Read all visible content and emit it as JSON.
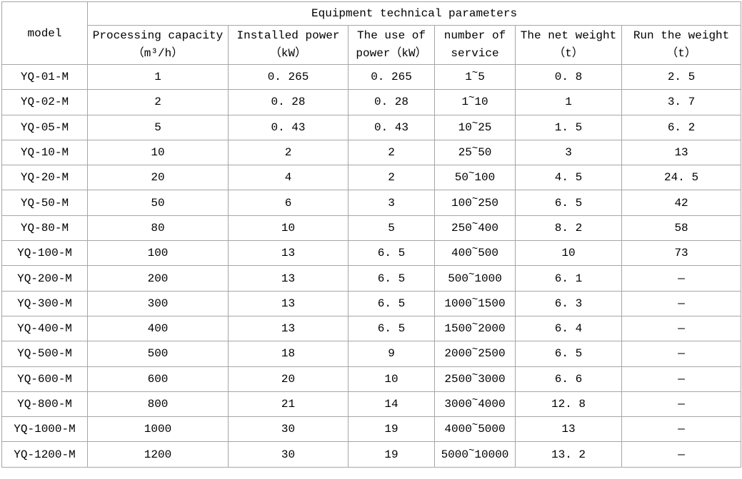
{
  "table": {
    "title": "Equipment technical parameters",
    "model_header": "model",
    "columns": [
      {
        "line1": "Processing capacity",
        "line2": "（m³/h）"
      },
      {
        "line1": "Installed power",
        "line2": "（kW）"
      },
      {
        "line1": "The use of",
        "line2": "power（kW）"
      },
      {
        "line1": "number of",
        "line2": "service"
      },
      {
        "line1": "The net weight",
        "line2": "（t）"
      },
      {
        "line1": "Run the weight",
        "line2": "（t）"
      }
    ],
    "rows": [
      {
        "model": "YQ-01-M",
        "values": [
          "1",
          "0.265",
          "0.265",
          "1~5",
          "0.8",
          "2.5"
        ]
      },
      {
        "model": "YQ-02-M",
        "values": [
          "2",
          "0.28",
          "0.28",
          "1~10",
          "1",
          "3.7"
        ]
      },
      {
        "model": "YQ-05-M",
        "values": [
          "5",
          "0.43",
          "0.43",
          "10~25",
          "1.5",
          "6.2"
        ]
      },
      {
        "model": "YQ-10-M",
        "values": [
          "10",
          "2",
          "2",
          "25~50",
          "3",
          "13"
        ]
      },
      {
        "model": "YQ-20-M",
        "values": [
          "20",
          "4",
          "2",
          "50~100",
          "4.5",
          "24.5"
        ]
      },
      {
        "model": "YQ-50-M",
        "values": [
          "50",
          "6",
          "3",
          "100~250",
          "6.5",
          "42"
        ]
      },
      {
        "model": "YQ-80-M",
        "values": [
          "80",
          "10",
          "5",
          "250~400",
          "8.2",
          "58"
        ]
      },
      {
        "model": "YQ-100-M",
        "values": [
          "100",
          "13",
          "6.5",
          "400~500",
          "10",
          "73"
        ]
      },
      {
        "model": "YQ-200-M",
        "values": [
          "200",
          "13",
          "6.5",
          "500~1000",
          "6.1",
          "—"
        ]
      },
      {
        "model": "YQ-300-M",
        "values": [
          "300",
          "13",
          "6.5",
          "1000~1500",
          "6.3",
          "—"
        ]
      },
      {
        "model": "YQ-400-M",
        "values": [
          "400",
          "13",
          "6.5",
          "1500~2000",
          "6.4",
          "—"
        ]
      },
      {
        "model": "YQ-500-M",
        "values": [
          "500",
          "18",
          "9",
          "2000~2500",
          "6.5",
          "—"
        ]
      },
      {
        "model": "YQ-600-M",
        "values": [
          "600",
          "20",
          "10",
          "2500~3000",
          "6.6",
          "—"
        ]
      },
      {
        "model": "YQ-800-M",
        "values": [
          "800",
          "21",
          "14",
          "3000~4000",
          "12.8",
          "—"
        ]
      },
      {
        "model": "YQ-1000-M",
        "values": [
          "1000",
          "30",
          "19",
          "4000~5000",
          "13",
          "—"
        ]
      },
      {
        "model": "YQ-1200-M",
        "values": [
          "1200",
          "30",
          "19",
          "5000~10000",
          "13.2",
          "—"
        ]
      }
    ]
  },
  "colors": {
    "border": "#a6a6a6",
    "text": "#000000",
    "background": "#ffffff"
  }
}
